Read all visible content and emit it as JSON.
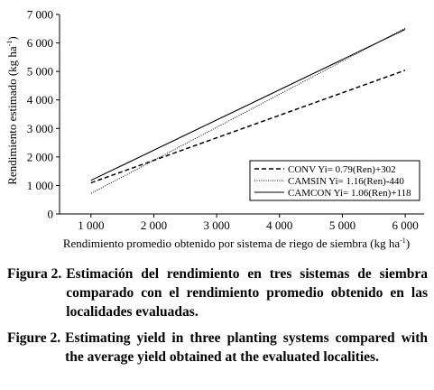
{
  "chart_data": {
    "type": "line",
    "xlabel": "Rendimiento promedio obtenido por sistema de riego de siembra (kg ha",
    "xlabel_sup": "-1",
    "xlabel_close": ")",
    "ylabel": "Rendimiento estimado (kg ha",
    "ylabel_sup": "-1",
    "ylabel_close": ")",
    "xlim": [
      500,
      6300
    ],
    "ylim": [
      0,
      7000
    ],
    "x_ticks": [
      1000,
      2000,
      3000,
      4000,
      5000,
      6000
    ],
    "x_tick_labels": [
      "1 000",
      "2 000",
      "3 000",
      "4 000",
      "5 000",
      "6 000"
    ],
    "y_ticks": [
      0,
      1000,
      2000,
      3000,
      4000,
      5000,
      6000,
      7000
    ],
    "y_tick_labels": [
      "0",
      "1 000",
      "2 000",
      "3 000",
      "4 000",
      "5 000",
      "6 000",
      "7 000"
    ],
    "legend_position": "lower-right",
    "series": [
      {
        "name": "CONV Yi= 0.79(Ren)+302",
        "style": "dashed",
        "x": [
          1000,
          6000
        ],
        "y": [
          1092,
          5042
        ]
      },
      {
        "name": "CAMSIN Yi= 1.16(Ren)-440",
        "style": "dotted",
        "x": [
          1000,
          6000
        ],
        "y": [
          720,
          6520
        ]
      },
      {
        "name": "CAMCON Yi= 1.06(Ren)+118",
        "style": "solid",
        "x": [
          1000,
          6000
        ],
        "y": [
          1178,
          6478
        ]
      }
    ]
  },
  "captions": {
    "es_lead": "Figura 2.",
    "es_body": "Estimación del rendimiento en tres sistemas de siembra comparado con el rendimiento promedio obtenido en las localidades evaluadas.",
    "en_lead": "Figure 2.",
    "en_body": "Estimating yield in three planting systems compared with the average yield obtained at the evaluated localities."
  }
}
